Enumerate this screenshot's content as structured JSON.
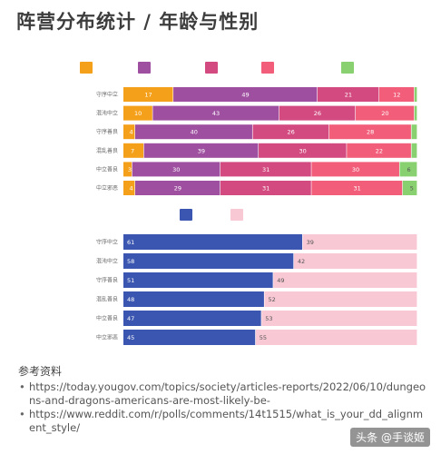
{
  "title": "阵营分布统计 / 年龄与性别",
  "references": {
    "heading": "参考资料",
    "links": [
      "https://today.yougov.com/topics/society/articles-reports/2022/06/10/dungeons-and-dragons-americans-are-most-likely-be-",
      "https://www.reddit.com/r/polls/comments/14t1515/what_is_your_dd_alignment_style/"
    ]
  },
  "watermark": "头条 @手谈姬",
  "chart_data": [
    {
      "type": "bar",
      "orientation": "horizontal",
      "stacked": true,
      "percent": true,
      "categories": [
        "守序中立",
        "混沌中立",
        "守序善良",
        "混乱善良",
        "中立善良",
        "中立邪恶"
      ],
      "series": [
        {
          "name": "",
          "color": "#f5a01a",
          "values": [
            17,
            10,
            4,
            7,
            3,
            4
          ]
        },
        {
          "name": "",
          "color": "#9e4fa0",
          "values": [
            49,
            43,
            40,
            39,
            30,
            29
          ]
        },
        {
          "name": "",
          "color": "#d34a80",
          "values": [
            21,
            26,
            26,
            30,
            31,
            31
          ]
        },
        {
          "name": "",
          "color": "#f25d79",
          "values": [
            12,
            20,
            28,
            22,
            30,
            31
          ]
        },
        {
          "name": "",
          "color": "#88d070",
          "values": [
            1,
            1,
            2,
            2,
            6,
            5
          ]
        }
      ],
      "xlim": [
        0,
        100
      ],
      "legend": "top"
    },
    {
      "type": "bar",
      "orientation": "horizontal",
      "stacked": true,
      "percent": true,
      "categories": [
        "守序中立",
        "混沌中立",
        "守序善良",
        "混乱善良",
        "中立善良",
        "中立邪恶"
      ],
      "series": [
        {
          "name": "",
          "color": "#3b56b0",
          "values": [
            61,
            58,
            51,
            48,
            47,
            45
          ]
        },
        {
          "name": "",
          "color": "#f8c8d4",
          "values": [
            39,
            42,
            49,
            52,
            53,
            55
          ]
        }
      ],
      "xlim": [
        0,
        100
      ],
      "legend": "top"
    }
  ]
}
